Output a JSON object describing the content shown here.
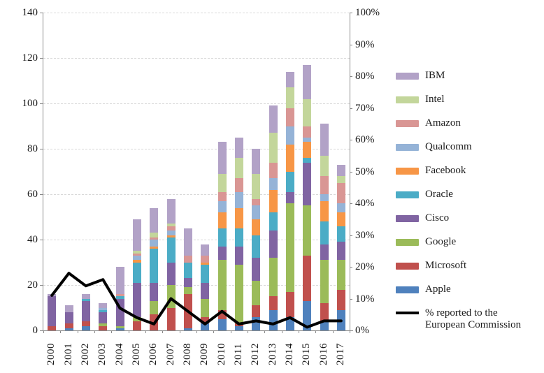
{
  "chart_data": {
    "type": "combo-stacked-bar-line",
    "title": "",
    "categories": [
      "2000",
      "2001",
      "2002",
      "2003",
      "2004",
      "2005",
      "2006",
      "2007",
      "2008",
      "2009",
      "2010",
      "2011",
      "2012",
      "2013",
      "2014",
      "2015",
      "2016",
      "2017"
    ],
    "series": [
      {
        "name": "Apple",
        "color": "#4F81BD",
        "values": [
          0,
          1,
          2,
          0,
          1,
          0,
          0,
          0,
          1,
          3,
          5,
          2,
          6,
          9,
          6,
          13,
          4,
          9
        ]
      },
      {
        "name": "Microsoft",
        "color": "#C0504D",
        "values": [
          2,
          2,
          2,
          2,
          0,
          4,
          7,
          10,
          15,
          3,
          4,
          1,
          5,
          6,
          11,
          20,
          8,
          9
        ]
      },
      {
        "name": "Google",
        "color": "#9BBB59",
        "values": [
          0,
          0,
          0,
          1,
          1,
          2,
          6,
          10,
          3,
          8,
          22,
          26,
          11,
          17,
          39,
          22,
          19,
          13
        ]
      },
      {
        "name": "Cisco",
        "color": "#8064A2",
        "values": [
          13,
          5,
          9,
          5,
          12,
          15,
          8,
          10,
          4,
          7,
          6,
          8,
          10,
          12,
          5,
          19,
          7,
          8
        ]
      },
      {
        "name": "Oracle",
        "color": "#4BACC6",
        "values": [
          0,
          0,
          1,
          1,
          1,
          9,
          15,
          11,
          7,
          8,
          8,
          8,
          10,
          8,
          9,
          2,
          10,
          7
        ]
      },
      {
        "name": "Facebook",
        "color": "#F79646",
        "values": [
          0,
          0,
          0,
          0,
          0,
          1,
          1,
          1,
          0,
          1,
          7,
          9,
          7,
          10,
          12,
          7,
          9,
          6
        ]
      },
      {
        "name": "Qualcomm",
        "color": "#95B3D7",
        "values": [
          0,
          0,
          0,
          1,
          0,
          2,
          3,
          2,
          0,
          0,
          5,
          7,
          6,
          5,
          8,
          2,
          3,
          4
        ]
      },
      {
        "name": "Amazon",
        "color": "#D99694",
        "values": [
          0,
          0,
          0,
          0,
          1,
          1,
          1,
          2,
          3,
          3,
          4,
          6,
          3,
          7,
          8,
          5,
          8,
          9
        ]
      },
      {
        "name": "Intel",
        "color": "#C3D69B",
        "values": [
          0,
          0,
          0,
          0,
          0,
          1,
          2,
          1,
          0,
          0,
          8,
          9,
          11,
          13,
          9,
          12,
          9,
          3
        ]
      },
      {
        "name": "IBM",
        "color": "#B2A2C7",
        "values": [
          1,
          3,
          2,
          2,
          12,
          14,
          11,
          11,
          12,
          5,
          14,
          9,
          11,
          12,
          7,
          15,
          14,
          5
        ]
      }
    ],
    "bar_totals": [
      16,
      11,
      16,
      12,
      28,
      49,
      54,
      58,
      45,
      38,
      83,
      85,
      80,
      99,
      114,
      117,
      91,
      73
    ],
    "line": {
      "name": "% reported to the European Commission",
      "color": "#000000",
      "values_percent": [
        11,
        18,
        14,
        16,
        7,
        4,
        2,
        10,
        6,
        2,
        6,
        2,
        3,
        2,
        4,
        1,
        3,
        3
      ]
    },
    "left_axis": {
      "min": 0,
      "max": 140,
      "step": 20,
      "suffix": ""
    },
    "right_axis": {
      "min": 0,
      "max": 100,
      "step": 10,
      "suffix": "%"
    },
    "legend_position": "right",
    "legend_order_top_to_bottom": [
      "IBM",
      "Intel",
      "Amazon",
      "Qualcomm",
      "Facebook",
      "Oracle",
      "Cisco",
      "Google",
      "Microsoft",
      "Apple",
      "% reported to the European Commission"
    ],
    "grid": true
  }
}
